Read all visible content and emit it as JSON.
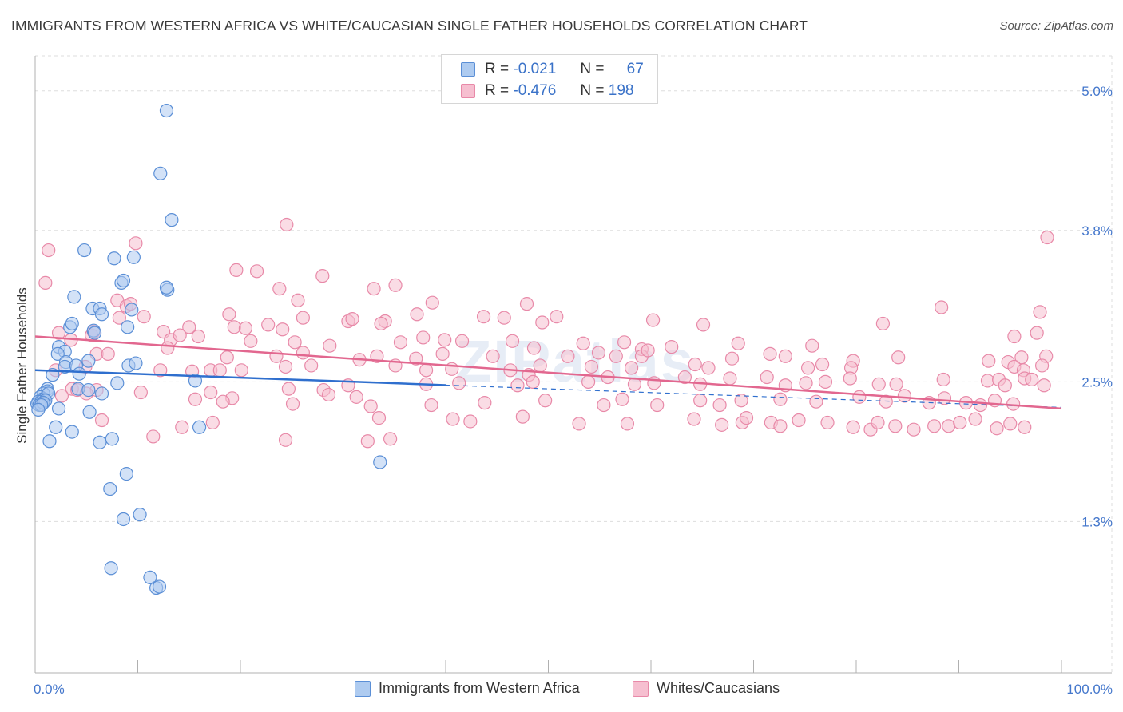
{
  "title": "IMMIGRANTS FROM WESTERN AFRICA VS WHITE/CAUCASIAN SINGLE FATHER HOUSEHOLDS CORRELATION CHART",
  "source": "Source: ZipAtlas.com",
  "watermark": "ZIPatlas",
  "legend": {
    "blue": {
      "r_label": "R =",
      "r_value": "-0.021",
      "n_label": "N =",
      "n_value": "67"
    },
    "pink": {
      "r_label": "R =",
      "r_value": "-0.476",
      "n_label": "N =",
      "n_value": "198"
    }
  },
  "bottom_legend": {
    "blue_label": "Immigrants from Western Africa",
    "pink_label": "Whites/Caucasians"
  },
  "colors": {
    "blue": "#5b8fd6",
    "blue_fill": "#aecbf0",
    "blue_line": "#2f6fce",
    "pink": "#e889a8",
    "pink_fill": "#f6bfd0",
    "pink_line": "#e2678f",
    "axis_text": "#4477cc",
    "grid": "#dddddd"
  },
  "chart_data": {
    "type": "scatter",
    "title": "IMMIGRANTS FROM WESTERN AFRICA VS WHITE/CAUCASIAN SINGLE FATHER HOUSEHOLDS CORRELATION CHART",
    "xlabel": "",
    "ylabel": "Single Father Households",
    "xlim": [
      0,
      100
    ],
    "ylim": [
      0,
      5.3
    ],
    "x_tick_labels": [
      "0.0%",
      "100.0%"
    ],
    "y_ticks": [
      {
        "value": 5.0,
        "label": "5.0%"
      },
      {
        "value": 3.8,
        "label": "3.8%"
      },
      {
        "value": 2.5,
        "label": "2.5%"
      },
      {
        "value": 1.3,
        "label": "1.3%"
      }
    ],
    "series": [
      {
        "name": "Immigrants from Western Africa",
        "color": "blue",
        "trend": {
          "x0": 0,
          "y0": 2.6,
          "x1": 100,
          "y1": 2.28,
          "solid_until": 40
        },
        "points": [
          [
            12.8,
            4.83
          ],
          [
            12.2,
            4.29
          ],
          [
            13.3,
            3.89
          ],
          [
            4.8,
            3.63
          ],
          [
            7.7,
            3.56
          ],
          [
            9.6,
            3.57
          ],
          [
            8.4,
            3.35
          ],
          [
            8.6,
            3.37
          ],
          [
            12.9,
            3.29
          ],
          [
            12.8,
            3.31
          ],
          [
            3.8,
            3.23
          ],
          [
            5.6,
            3.13
          ],
          [
            6.3,
            3.13
          ],
          [
            9.4,
            3.12
          ],
          [
            6.5,
            3.08
          ],
          [
            3.4,
            2.97
          ],
          [
            3.6,
            3.0
          ],
          [
            5.7,
            2.94
          ],
          [
            5.8,
            2.92
          ],
          [
            9.0,
            2.97
          ],
          [
            2.3,
            2.8
          ],
          [
            2.9,
            2.76
          ],
          [
            2.2,
            2.74
          ],
          [
            5.2,
            2.68
          ],
          [
            3.0,
            2.67
          ],
          [
            2.9,
            2.63
          ],
          [
            4.0,
            2.64
          ],
          [
            9.1,
            2.64
          ],
          [
            9.8,
            2.66
          ],
          [
            1.7,
            2.56
          ],
          [
            4.3,
            2.57
          ],
          [
            8.0,
            2.49
          ],
          [
            15.6,
            2.51
          ],
          [
            1.2,
            2.44
          ],
          [
            1.2,
            2.42
          ],
          [
            4.2,
            2.44
          ],
          [
            5.2,
            2.43
          ],
          [
            6.5,
            2.4
          ],
          [
            0.8,
            2.4
          ],
          [
            0.5,
            2.37
          ],
          [
            0.7,
            2.35
          ],
          [
            0.9,
            2.35
          ],
          [
            1.3,
            2.4
          ],
          [
            0.3,
            2.33
          ],
          [
            0.2,
            2.31
          ],
          [
            0.6,
            2.33
          ],
          [
            0.4,
            2.3
          ],
          [
            1.0,
            2.34
          ],
          [
            0.8,
            2.32
          ],
          [
            0.6,
            2.3
          ],
          [
            2.3,
            2.27
          ],
          [
            0.3,
            2.26
          ],
          [
            5.3,
            2.24
          ],
          [
            2.0,
            2.11
          ],
          [
            3.6,
            2.07
          ],
          [
            16.0,
            2.11
          ],
          [
            1.4,
            1.99
          ],
          [
            7.5,
            2.01
          ],
          [
            6.3,
            1.98
          ],
          [
            33.6,
            1.81
          ],
          [
            8.9,
            1.71
          ],
          [
            7.3,
            1.58
          ],
          [
            10.2,
            1.36
          ],
          [
            8.6,
            1.32
          ],
          [
            7.4,
            0.9
          ],
          [
            11.2,
            0.82
          ],
          [
            11.8,
            0.73
          ],
          [
            12.1,
            0.74
          ]
        ]
      },
      {
        "name": "Whites/Caucasians",
        "color": "pink",
        "trend": {
          "x0": 0,
          "y0": 2.89,
          "x1": 100,
          "y1": 2.27
        },
        "points": [
          [
            1.3,
            3.63
          ],
          [
            9.8,
            3.69
          ],
          [
            24.5,
            3.85
          ],
          [
            98.6,
            3.74
          ],
          [
            1.0,
            3.35
          ],
          [
            19.6,
            3.46
          ],
          [
            21.6,
            3.45
          ],
          [
            23.8,
            3.3
          ],
          [
            28.0,
            3.41
          ],
          [
            33.0,
            3.3
          ],
          [
            35.1,
            3.33
          ],
          [
            8.0,
            3.2
          ],
          [
            8.9,
            3.15
          ],
          [
            9.3,
            3.17
          ],
          [
            25.6,
            3.2
          ],
          [
            37.2,
            3.08
          ],
          [
            38.7,
            3.18
          ],
          [
            43.7,
            3.06
          ],
          [
            47.9,
            3.17
          ],
          [
            88.3,
            3.14
          ],
          [
            8.2,
            3.05
          ],
          [
            10.6,
            3.06
          ],
          [
            18.9,
            3.08
          ],
          [
            26.1,
            3.05
          ],
          [
            30.5,
            3.02
          ],
          [
            34.1,
            3.02
          ],
          [
            19.4,
            2.97
          ],
          [
            20.5,
            2.96
          ],
          [
            22.7,
            2.99
          ],
          [
            24.1,
            2.95
          ],
          [
            30.9,
            3.04
          ],
          [
            33.7,
            3.0
          ],
          [
            15.0,
            2.97
          ],
          [
            12.5,
            2.93
          ],
          [
            45.7,
            3.05
          ],
          [
            49.4,
            3.01
          ],
          [
            50.8,
            3.06
          ],
          [
            60.2,
            3.03
          ],
          [
            65.1,
            2.99
          ],
          [
            82.6,
            3.0
          ],
          [
            97.9,
            3.1
          ],
          [
            2.3,
            2.92
          ],
          [
            3.5,
            2.86
          ],
          [
            5.5,
            2.9
          ],
          [
            5.7,
            2.93
          ],
          [
            13.2,
            2.86
          ],
          [
            14.1,
            2.9
          ],
          [
            15.9,
            2.89
          ],
          [
            21.0,
            2.85
          ],
          [
            25.3,
            2.84
          ],
          [
            28.7,
            2.81
          ],
          [
            35.6,
            2.84
          ],
          [
            37.8,
            2.88
          ],
          [
            39.9,
            2.86
          ],
          [
            41.6,
            2.85
          ],
          [
            46.5,
            2.85
          ],
          [
            48.6,
            2.79
          ],
          [
            53.4,
            2.83
          ],
          [
            57.4,
            2.84
          ],
          [
            59.1,
            2.78
          ],
          [
            62.0,
            2.8
          ],
          [
            68.5,
            2.83
          ],
          [
            75.7,
            2.81
          ],
          [
            95.4,
            2.89
          ],
          [
            97.6,
            2.92
          ],
          [
            6.0,
            2.74
          ],
          [
            7.1,
            2.74
          ],
          [
            12.9,
            2.79
          ],
          [
            18.7,
            2.71
          ],
          [
            23.5,
            2.72
          ],
          [
            26.1,
            2.75
          ],
          [
            31.6,
            2.69
          ],
          [
            33.3,
            2.72
          ],
          [
            37.1,
            2.7
          ],
          [
            39.7,
            2.74
          ],
          [
            44.6,
            2.72
          ],
          [
            51.9,
            2.72
          ],
          [
            54.9,
            2.75
          ],
          [
            56.6,
            2.72
          ],
          [
            59.1,
            2.72
          ],
          [
            59.7,
            2.77
          ],
          [
            67.9,
            2.7
          ],
          [
            71.6,
            2.74
          ],
          [
            73.1,
            2.72
          ],
          [
            79.7,
            2.68
          ],
          [
            84.1,
            2.71
          ],
          [
            92.9,
            2.68
          ],
          [
            96.1,
            2.71
          ],
          [
            98.5,
            2.72
          ],
          [
            2.0,
            2.6
          ],
          [
            4.9,
            2.63
          ],
          [
            12.2,
            2.6
          ],
          [
            15.3,
            2.59
          ],
          [
            17.1,
            2.6
          ],
          [
            18.0,
            2.6
          ],
          [
            20.1,
            2.6
          ],
          [
            24.4,
            2.63
          ],
          [
            26.9,
            2.64
          ],
          [
            35.1,
            2.64
          ],
          [
            38.1,
            2.6
          ],
          [
            40.6,
            2.61
          ],
          [
            46.3,
            2.6
          ],
          [
            48.1,
            2.56
          ],
          [
            49.2,
            2.64
          ],
          [
            54.2,
            2.63
          ],
          [
            58.1,
            2.62
          ],
          [
            64.3,
            2.65
          ],
          [
            65.6,
            2.62
          ],
          [
            75.3,
            2.62
          ],
          [
            76.7,
            2.65
          ],
          [
            79.5,
            2.62
          ],
          [
            94.8,
            2.67
          ],
          [
            95.4,
            2.63
          ],
          [
            96.3,
            2.6
          ],
          [
            98.1,
            2.64
          ],
          [
            3.6,
            2.44
          ],
          [
            4.1,
            2.43
          ],
          [
            6.0,
            2.43
          ],
          [
            10.3,
            2.41
          ],
          [
            17.1,
            2.41
          ],
          [
            19.2,
            2.36
          ],
          [
            24.7,
            2.44
          ],
          [
            28.1,
            2.43
          ],
          [
            30.5,
            2.47
          ],
          [
            38.1,
            2.48
          ],
          [
            41.3,
            2.49
          ],
          [
            47.0,
            2.47
          ],
          [
            48.5,
            2.5
          ],
          [
            53.9,
            2.5
          ],
          [
            55.8,
            2.54
          ],
          [
            58.4,
            2.48
          ],
          [
            60.3,
            2.49
          ],
          [
            63.3,
            2.54
          ],
          [
            64.8,
            2.48
          ],
          [
            67.7,
            2.53
          ],
          [
            71.3,
            2.54
          ],
          [
            73.1,
            2.47
          ],
          [
            75.1,
            2.49
          ],
          [
            77.0,
            2.5
          ],
          [
            79.4,
            2.53
          ],
          [
            82.2,
            2.48
          ],
          [
            83.9,
            2.48
          ],
          [
            88.5,
            2.52
          ],
          [
            92.8,
            2.51
          ],
          [
            93.9,
            2.52
          ],
          [
            94.5,
            2.47
          ],
          [
            96.4,
            2.53
          ],
          [
            97.1,
            2.52
          ],
          [
            98.3,
            2.47
          ],
          [
            2.6,
            2.38
          ],
          [
            5.0,
            2.4
          ],
          [
            15.6,
            2.35
          ],
          [
            18.3,
            2.33
          ],
          [
            25.1,
            2.31
          ],
          [
            28.6,
            2.39
          ],
          [
            31.3,
            2.37
          ],
          [
            32.7,
            2.29
          ],
          [
            38.6,
            2.3
          ],
          [
            43.8,
            2.32
          ],
          [
            49.7,
            2.34
          ],
          [
            55.4,
            2.3
          ],
          [
            57.2,
            2.35
          ],
          [
            60.6,
            2.3
          ],
          [
            64.8,
            2.34
          ],
          [
            66.7,
            2.3
          ],
          [
            68.8,
            2.34
          ],
          [
            72.6,
            2.35
          ],
          [
            76.1,
            2.33
          ],
          [
            80.3,
            2.37
          ],
          [
            82.9,
            2.33
          ],
          [
            84.7,
            2.38
          ],
          [
            87.1,
            2.32
          ],
          [
            88.6,
            2.36
          ],
          [
            90.7,
            2.32
          ],
          [
            92.1,
            2.3
          ],
          [
            93.5,
            2.34
          ],
          [
            95.3,
            2.31
          ],
          [
            6.5,
            2.17
          ],
          [
            14.3,
            2.11
          ],
          [
            17.3,
            2.15
          ],
          [
            33.5,
            2.19
          ],
          [
            40.7,
            2.18
          ],
          [
            42.4,
            2.16
          ],
          [
            47.5,
            2.2
          ],
          [
            53.0,
            2.14
          ],
          [
            57.7,
            2.14
          ],
          [
            64.2,
            2.18
          ],
          [
            66.9,
            2.13
          ],
          [
            68.9,
            2.15
          ],
          [
            69.3,
            2.19
          ],
          [
            71.7,
            2.15
          ],
          [
            72.6,
            2.12
          ],
          [
            74.4,
            2.17
          ],
          [
            77.2,
            2.15
          ],
          [
            79.7,
            2.11
          ],
          [
            81.4,
            2.09
          ],
          [
            82.1,
            2.15
          ],
          [
            83.8,
            2.12
          ],
          [
            85.6,
            2.09
          ],
          [
            87.6,
            2.12
          ],
          [
            89.0,
            2.12
          ],
          [
            90.1,
            2.15
          ],
          [
            91.6,
            2.18
          ],
          [
            93.7,
            2.1
          ],
          [
            95.0,
            2.14
          ],
          [
            96.4,
            2.11
          ],
          [
            11.5,
            2.03
          ],
          [
            24.4,
            2.0
          ],
          [
            32.4,
            1.99
          ],
          [
            34.6,
            2.01
          ]
        ]
      }
    ]
  }
}
